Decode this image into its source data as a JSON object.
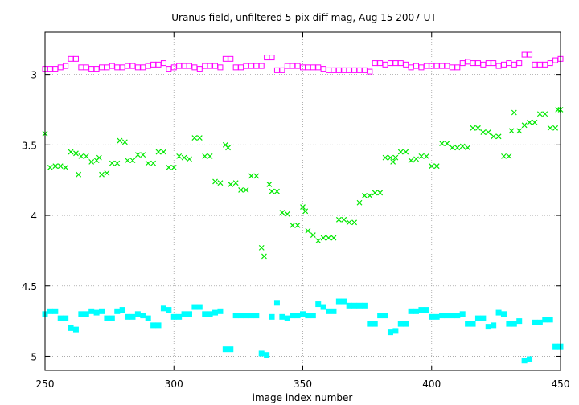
{
  "chart_data": {
    "type": "scatter",
    "title": "Uranus field, unfiltered 5-pix diff mag, Aug 15 2007 UT",
    "xlabel": "image index number",
    "ylabel": "",
    "xlim": [
      250,
      450
    ],
    "ylim": [
      5.1,
      2.7
    ],
    "y_inverted": true,
    "grid": true,
    "x_ticks": [
      "250",
      "300",
      "350",
      "400",
      "450"
    ],
    "y_ticks": [
      "3",
      "3.5",
      "4",
      "4.5",
      "5"
    ],
    "series": [
      {
        "marker": "open-square",
        "color": "#ff00ff",
        "points": [
          [
            250,
            2.96
          ],
          [
            252,
            2.96
          ],
          [
            254,
            2.96
          ],
          [
            256,
            2.95
          ],
          [
            258,
            2.94
          ],
          [
            260,
            2.89
          ],
          [
            262,
            2.89
          ],
          [
            264,
            2.95
          ],
          [
            266,
            2.95
          ],
          [
            268,
            2.96
          ],
          [
            270,
            2.96
          ],
          [
            272,
            2.95
          ],
          [
            274,
            2.95
          ],
          [
            276,
            2.94
          ],
          [
            278,
            2.95
          ],
          [
            280,
            2.95
          ],
          [
            282,
            2.94
          ],
          [
            284,
            2.94
          ],
          [
            286,
            2.95
          ],
          [
            288,
            2.95
          ],
          [
            290,
            2.94
          ],
          [
            292,
            2.93
          ],
          [
            294,
            2.93
          ],
          [
            296,
            2.92
          ],
          [
            298,
            2.96
          ],
          [
            300,
            2.95
          ],
          [
            302,
            2.94
          ],
          [
            304,
            2.94
          ],
          [
            306,
            2.94
          ],
          [
            308,
            2.95
          ],
          [
            310,
            2.96
          ],
          [
            312,
            2.94
          ],
          [
            314,
            2.94
          ],
          [
            316,
            2.94
          ],
          [
            318,
            2.95
          ],
          [
            320,
            2.89
          ],
          [
            322,
            2.89
          ],
          [
            324,
            2.95
          ],
          [
            326,
            2.95
          ],
          [
            328,
            2.94
          ],
          [
            330,
            2.94
          ],
          [
            332,
            2.94
          ],
          [
            334,
            2.94
          ],
          [
            336,
            2.88
          ],
          [
            338,
            2.88
          ],
          [
            340,
            2.97
          ],
          [
            342,
            2.97
          ],
          [
            344,
            2.94
          ],
          [
            346,
            2.94
          ],
          [
            348,
            2.94
          ],
          [
            350,
            2.95
          ],
          [
            352,
            2.95
          ],
          [
            354,
            2.95
          ],
          [
            356,
            2.95
          ],
          [
            358,
            2.96
          ],
          [
            360,
            2.97
          ],
          [
            362,
            2.97
          ],
          [
            364,
            2.97
          ],
          [
            366,
            2.97
          ],
          [
            368,
            2.97
          ],
          [
            370,
            2.97
          ],
          [
            372,
            2.97
          ],
          [
            374,
            2.97
          ],
          [
            376,
            2.98
          ],
          [
            378,
            2.92
          ],
          [
            380,
            2.92
          ],
          [
            382,
            2.93
          ],
          [
            384,
            2.92
          ],
          [
            386,
            2.92
          ],
          [
            388,
            2.92
          ],
          [
            390,
            2.93
          ],
          [
            392,
            2.95
          ],
          [
            394,
            2.94
          ],
          [
            396,
            2.95
          ],
          [
            398,
            2.94
          ],
          [
            400,
            2.94
          ],
          [
            402,
            2.94
          ],
          [
            404,
            2.94
          ],
          [
            406,
            2.94
          ],
          [
            408,
            2.95
          ],
          [
            410,
            2.95
          ],
          [
            412,
            2.92
          ],
          [
            414,
            2.91
          ],
          [
            416,
            2.92
          ],
          [
            418,
            2.92
          ],
          [
            420,
            2.93
          ],
          [
            422,
            2.92
          ],
          [
            424,
            2.92
          ],
          [
            426,
            2.94
          ],
          [
            428,
            2.93
          ],
          [
            430,
            2.92
          ],
          [
            432,
            2.93
          ],
          [
            434,
            2.92
          ],
          [
            436,
            2.86
          ],
          [
            438,
            2.86
          ],
          [
            440,
            2.93
          ],
          [
            442,
            2.93
          ],
          [
            444,
            2.93
          ],
          [
            446,
            2.92
          ],
          [
            448,
            2.9
          ],
          [
            450,
            2.89
          ]
        ]
      },
      {
        "marker": "x",
        "color": "#00e800",
        "points": [
          [
            250,
            3.42
          ],
          [
            252,
            3.66
          ],
          [
            254,
            3.65
          ],
          [
            256,
            3.65
          ],
          [
            258,
            3.66
          ],
          [
            260,
            3.55
          ],
          [
            262,
            3.56
          ],
          [
            263,
            3.71
          ],
          [
            264,
            3.58
          ],
          [
            266,
            3.58
          ],
          [
            268,
            3.62
          ],
          [
            270,
            3.61
          ],
          [
            271,
            3.59
          ],
          [
            272,
            3.71
          ],
          [
            274,
            3.7
          ],
          [
            276,
            3.63
          ],
          [
            278,
            3.63
          ],
          [
            279,
            3.47
          ],
          [
            281,
            3.48
          ],
          [
            282,
            3.61
          ],
          [
            284,
            3.61
          ],
          [
            286,
            3.57
          ],
          [
            288,
            3.57
          ],
          [
            290,
            3.63
          ],
          [
            292,
            3.63
          ],
          [
            294,
            3.55
          ],
          [
            296,
            3.55
          ],
          [
            298,
            3.66
          ],
          [
            300,
            3.66
          ],
          [
            302,
            3.58
          ],
          [
            304,
            3.59
          ],
          [
            306,
            3.6
          ],
          [
            308,
            3.45
          ],
          [
            310,
            3.45
          ],
          [
            312,
            3.58
          ],
          [
            314,
            3.58
          ],
          [
            316,
            3.76
          ],
          [
            318,
            3.77
          ],
          [
            320,
            3.5
          ],
          [
            321,
            3.52
          ],
          [
            322,
            3.78
          ],
          [
            324,
            3.77
          ],
          [
            326,
            3.82
          ],
          [
            328,
            3.82
          ],
          [
            330,
            3.72
          ],
          [
            332,
            3.72
          ],
          [
            334,
            4.23
          ],
          [
            335,
            4.29
          ],
          [
            337,
            3.78
          ],
          [
            338,
            3.83
          ],
          [
            340,
            3.83
          ],
          [
            342,
            3.98
          ],
          [
            344,
            3.99
          ],
          [
            346,
            4.07
          ],
          [
            348,
            4.07
          ],
          [
            350,
            3.94
          ],
          [
            351,
            3.97
          ],
          [
            352,
            4.11
          ],
          [
            354,
            4.14
          ],
          [
            356,
            4.18
          ],
          [
            358,
            4.16
          ],
          [
            360,
            4.16
          ],
          [
            362,
            4.16
          ],
          [
            364,
            4.03
          ],
          [
            366,
            4.03
          ],
          [
            368,
            4.05
          ],
          [
            370,
            4.05
          ],
          [
            372,
            3.91
          ],
          [
            374,
            3.86
          ],
          [
            376,
            3.86
          ],
          [
            378,
            3.84
          ],
          [
            380,
            3.84
          ],
          [
            382,
            3.59
          ],
          [
            384,
            3.59
          ],
          [
            385,
            3.62
          ],
          [
            386,
            3.59
          ],
          [
            388,
            3.55
          ],
          [
            390,
            3.55
          ],
          [
            392,
            3.61
          ],
          [
            394,
            3.6
          ],
          [
            396,
            3.58
          ],
          [
            398,
            3.58
          ],
          [
            400,
            3.65
          ],
          [
            402,
            3.65
          ],
          [
            404,
            3.49
          ],
          [
            406,
            3.49
          ],
          [
            408,
            3.52
          ],
          [
            410,
            3.52
          ],
          [
            412,
            3.51
          ],
          [
            414,
            3.52
          ],
          [
            416,
            3.38
          ],
          [
            418,
            3.38
          ],
          [
            420,
            3.41
          ],
          [
            422,
            3.41
          ],
          [
            424,
            3.44
          ],
          [
            426,
            3.44
          ],
          [
            428,
            3.58
          ],
          [
            430,
            3.58
          ],
          [
            431,
            3.4
          ],
          [
            432,
            3.27
          ],
          [
            434,
            3.4
          ],
          [
            436,
            3.36
          ],
          [
            438,
            3.34
          ],
          [
            440,
            3.34
          ],
          [
            442,
            3.28
          ],
          [
            444,
            3.28
          ],
          [
            446,
            3.38
          ],
          [
            448,
            3.38
          ],
          [
            449,
            3.25
          ],
          [
            450,
            3.25
          ]
        ]
      },
      {
        "marker": "filled-square",
        "color": "#00ffff",
        "points": [
          [
            250,
            4.7
          ],
          [
            252,
            4.68
          ],
          [
            254,
            4.68
          ],
          [
            256,
            4.73
          ],
          [
            258,
            4.73
          ],
          [
            260,
            4.8
          ],
          [
            262,
            4.81
          ],
          [
            264,
            4.7
          ],
          [
            266,
            4.7
          ],
          [
            268,
            4.68
          ],
          [
            270,
            4.69
          ],
          [
            272,
            4.68
          ],
          [
            274,
            4.73
          ],
          [
            276,
            4.73
          ],
          [
            278,
            4.68
          ],
          [
            280,
            4.67
          ],
          [
            282,
            4.72
          ],
          [
            284,
            4.72
          ],
          [
            286,
            4.7
          ],
          [
            288,
            4.71
          ],
          [
            290,
            4.73
          ],
          [
            292,
            4.78
          ],
          [
            294,
            4.78
          ],
          [
            296,
            4.66
          ],
          [
            298,
            4.67
          ],
          [
            300,
            4.72
          ],
          [
            302,
            4.72
          ],
          [
            304,
            4.7
          ],
          [
            306,
            4.7
          ],
          [
            308,
            4.65
          ],
          [
            310,
            4.65
          ],
          [
            312,
            4.7
          ],
          [
            314,
            4.7
          ],
          [
            316,
            4.69
          ],
          [
            318,
            4.68
          ],
          [
            320,
            4.95
          ],
          [
            322,
            4.95
          ],
          [
            324,
            4.71
          ],
          [
            326,
            4.71
          ],
          [
            328,
            4.71
          ],
          [
            330,
            4.71
          ],
          [
            332,
            4.71
          ],
          [
            334,
            4.98
          ],
          [
            336,
            4.99
          ],
          [
            338,
            4.72
          ],
          [
            340,
            4.62
          ],
          [
            342,
            4.72
          ],
          [
            344,
            4.73
          ],
          [
            346,
            4.71
          ],
          [
            348,
            4.71
          ],
          [
            350,
            4.7
          ],
          [
            352,
            4.71
          ],
          [
            354,
            4.71
          ],
          [
            356,
            4.63
          ],
          [
            358,
            4.65
          ],
          [
            360,
            4.68
          ],
          [
            362,
            4.68
          ],
          [
            364,
            4.61
          ],
          [
            366,
            4.61
          ],
          [
            368,
            4.64
          ],
          [
            370,
            4.64
          ],
          [
            372,
            4.64
          ],
          [
            374,
            4.64
          ],
          [
            376,
            4.77
          ],
          [
            378,
            4.77
          ],
          [
            380,
            4.71
          ],
          [
            382,
            4.71
          ],
          [
            384,
            4.83
          ],
          [
            386,
            4.82
          ],
          [
            388,
            4.77
          ],
          [
            390,
            4.77
          ],
          [
            392,
            4.68
          ],
          [
            394,
            4.68
          ],
          [
            396,
            4.67
          ],
          [
            398,
            4.67
          ],
          [
            400,
            4.72
          ],
          [
            402,
            4.72
          ],
          [
            404,
            4.71
          ],
          [
            406,
            4.71
          ],
          [
            408,
            4.71
          ],
          [
            410,
            4.71
          ],
          [
            412,
            4.7
          ],
          [
            414,
            4.77
          ],
          [
            416,
            4.77
          ],
          [
            418,
            4.73
          ],
          [
            420,
            4.73
          ],
          [
            422,
            4.79
          ],
          [
            424,
            4.78
          ],
          [
            426,
            4.69
          ],
          [
            428,
            4.7
          ],
          [
            430,
            4.77
          ],
          [
            432,
            4.77
          ],
          [
            434,
            4.75
          ],
          [
            436,
            5.03
          ],
          [
            438,
            5.02
          ],
          [
            440,
            4.76
          ],
          [
            442,
            4.76
          ],
          [
            444,
            4.74
          ],
          [
            446,
            4.74
          ],
          [
            448,
            4.93
          ],
          [
            450,
            4.93
          ]
        ]
      }
    ]
  }
}
